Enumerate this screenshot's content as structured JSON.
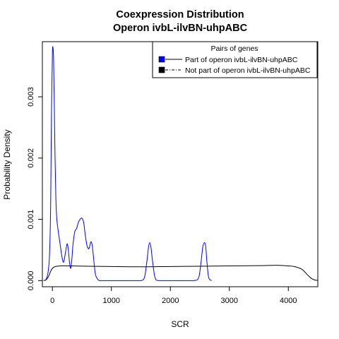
{
  "chart_data": {
    "type": "line",
    "title": "Coexpression Distribution",
    "subtitle": "Operon ivbL-ilvBN-uhpABC",
    "xlabel": "SCR",
    "ylabel": "Probability Density",
    "xlim": [
      -170,
      4500
    ],
    "ylim": [
      -0.0001,
      0.0039
    ],
    "xticks": [
      0,
      1000,
      2000,
      3000,
      4000
    ],
    "xtick_labels": [
      "0",
      "1000",
      "2000",
      "3000",
      "4000"
    ],
    "yticks": [
      0,
      0.001,
      0.002,
      0.003
    ],
    "ytick_labels": [
      "0.000",
      "0.001",
      "0.002",
      "0.003"
    ],
    "grid": false,
    "legend": {
      "title": "Pairs of genes",
      "placement": "top-right"
    },
    "series": [
      {
        "name": "Part of operon ivbL-ilvBN-uhpABC",
        "color": "#0000ff",
        "line_style": "solid",
        "x": [
          -120,
          -80,
          -50,
          -30,
          -15,
          0,
          10,
          20,
          30,
          45,
          60,
          75,
          100,
          130,
          160,
          190,
          220,
          250,
          270,
          290,
          310,
          330,
          350,
          380,
          410,
          440,
          470,
          500,
          530,
          550,
          580,
          610,
          630,
          650,
          670,
          690,
          710,
          730,
          760,
          800,
          900,
          1000,
          1200,
          1400,
          1500,
          1560,
          1600,
          1630,
          1650,
          1670,
          1700,
          1740,
          1800,
          2000,
          2200,
          2400,
          2480,
          2520,
          2550,
          2580,
          2600,
          2620,
          2650,
          2700
        ],
        "y": [
          0,
          0.0001,
          0.0004,
          0.0012,
          0.0028,
          0.0037,
          0.0038,
          0.0036,
          0.003,
          0.002,
          0.0013,
          0.001,
          0.0008,
          0.0006,
          0.0004,
          0.0003,
          0.00045,
          0.0006,
          0.0005,
          0.0003,
          0.0002,
          0.00035,
          0.0006,
          0.0008,
          0.00085,
          0.00095,
          0.001,
          0.00102,
          0.00095,
          0.0008,
          0.0006,
          0.00052,
          0.00055,
          0.00063,
          0.0006,
          0.00045,
          0.00025,
          0.0001,
          3e-05,
          0,
          0,
          0,
          0,
          0,
          0,
          5e-05,
          0.0003,
          0.00055,
          0.00062,
          0.00055,
          0.0003,
          5e-05,
          0,
          0,
          0,
          0,
          5e-05,
          0.0003,
          0.00055,
          0.00062,
          0.00055,
          0.0003,
          5e-05,
          0
        ]
      },
      {
        "name": "Not part of operon ivbL-ilvBN-uhpABC",
        "color": "#000000",
        "line_style": "solid",
        "x": [
          -150,
          -100,
          -60,
          -30,
          0,
          50,
          150,
          300,
          600,
          1000,
          1500,
          2000,
          2500,
          3000,
          3500,
          3800,
          4000,
          4100,
          4200,
          4250,
          4300,
          4350,
          4400,
          4450,
          4500
        ],
        "y": [
          0,
          2e-05,
          8e-05,
          0.00015,
          0.0002,
          0.00023,
          0.00024,
          0.00024,
          0.000235,
          0.00023,
          0.000225,
          0.00023,
          0.000235,
          0.00024,
          0.000245,
          0.00025,
          0.00024,
          0.00023,
          0.0002,
          0.00017,
          0.00012,
          7e-05,
          3e-05,
          1e-05,
          2e-06
        ]
      }
    ]
  }
}
